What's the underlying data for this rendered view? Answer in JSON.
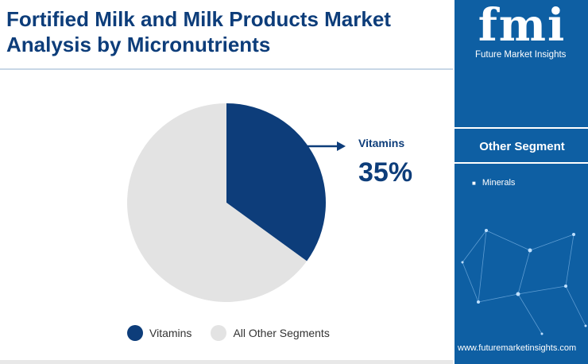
{
  "title_line1": "Fortified Milk and Milk Products Market",
  "title_line2": "Analysis by Micronutrients",
  "chart_data": {
    "type": "pie",
    "segments": [
      {
        "label": "Vitamins",
        "value": 35,
        "color": "#0d3d7a"
      },
      {
        "label": "All Other Segments",
        "value": 65,
        "color": "#e3e3e3"
      }
    ],
    "start_angle_deg": 0,
    "direction": "clockwise",
    "highlight": {
      "label": "Vitamins",
      "value_text": "35%"
    },
    "legend_position": "bottom"
  },
  "legend": [
    {
      "label": "Vitamins",
      "color": "#0d3d7a"
    },
    {
      "label": "All Other Segments",
      "color": "#e3e3e3"
    }
  ],
  "sidebar": {
    "logo": "fmi",
    "logo_subtitle": "Future Market Insights",
    "heading": "Other Segment",
    "items": [
      "Minerals"
    ],
    "url": "www.futuremarketinsights.com"
  },
  "colors": {
    "accent": "#0d3d7a",
    "sidebar": "#0e5fa3",
    "other": "#e3e3e3"
  }
}
